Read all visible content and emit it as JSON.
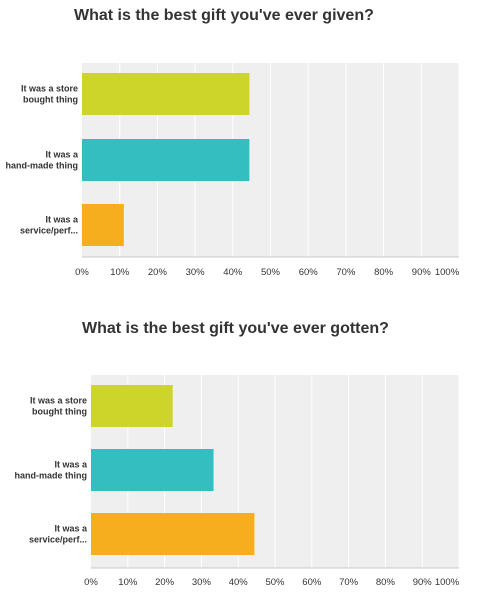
{
  "chart_data": [
    {
      "type": "bar",
      "orientation": "horizontal",
      "title": "What is the best gift you've ever given?",
      "categories": [
        [
          "It was a store",
          "bought thing"
        ],
        [
          "It was a",
          "hand-made thing"
        ],
        [
          "It was a",
          "service/perf..."
        ]
      ],
      "values": [
        44.4,
        44.4,
        11.1
      ],
      "colors": [
        "#cdd52b",
        "#35bec0",
        "#f7ae1e"
      ],
      "xlim": [
        0,
        100
      ],
      "xticks": [
        "0%",
        "10%",
        "20%",
        "30%",
        "40%",
        "50%",
        "60%",
        "70%",
        "80%",
        "90%",
        "100%"
      ],
      "grid": true,
      "xlabel": "",
      "ylabel": ""
    },
    {
      "type": "bar",
      "orientation": "horizontal",
      "title": "What is the best gift you've ever gotten?",
      "categories": [
        [
          "It was a store",
          "bought thing"
        ],
        [
          "It was a",
          "hand-made thing"
        ],
        [
          "It was a",
          "service/perf..."
        ]
      ],
      "values": [
        22.2,
        33.3,
        44.4
      ],
      "colors": [
        "#cdd52b",
        "#35bec0",
        "#f7ae1e"
      ],
      "xlim": [
        0,
        100
      ],
      "xticks": [
        "0%",
        "10%",
        "20%",
        "30%",
        "40%",
        "50%",
        "60%",
        "70%",
        "80%",
        "90%",
        "100%"
      ],
      "grid": true,
      "xlabel": "",
      "ylabel": ""
    }
  ]
}
